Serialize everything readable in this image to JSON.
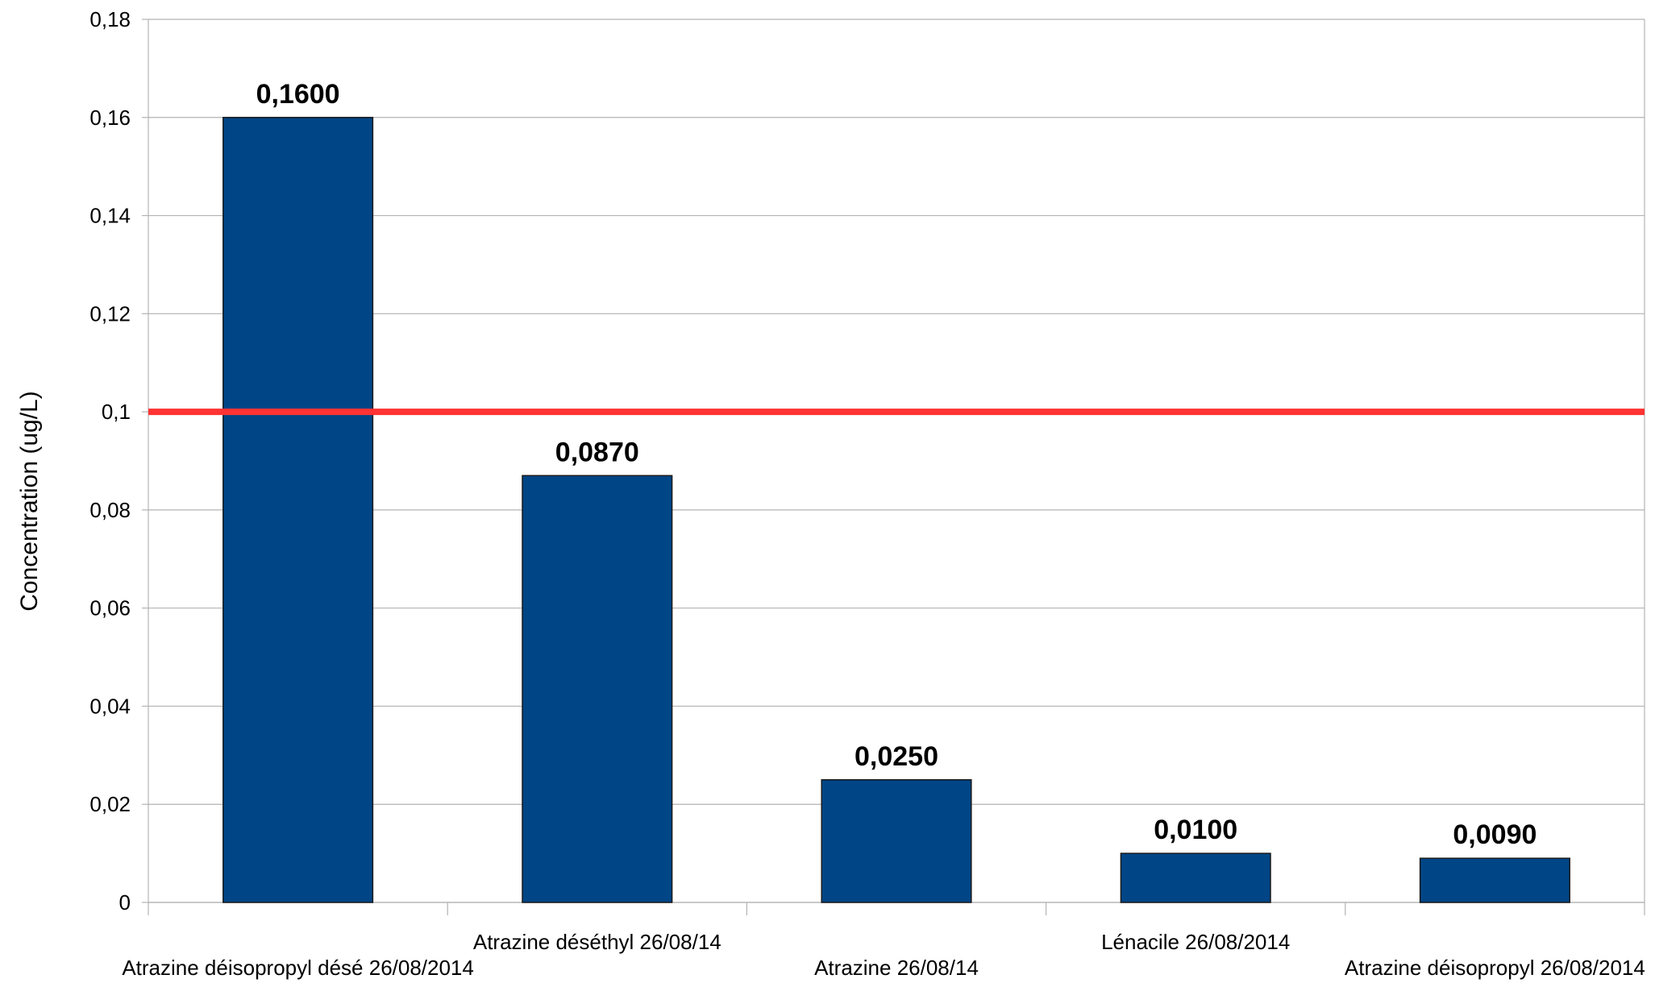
{
  "chart_data": {
    "type": "bar",
    "title": "",
    "xlabel": "",
    "ylabel": "Concentration (ug/L)",
    "ylim": [
      0,
      0.18
    ],
    "yticks": [
      0,
      0.02,
      0.04,
      0.06,
      0.08,
      0.1,
      0.12,
      0.14,
      0.16,
      0.18
    ],
    "ytick_labels": [
      "0",
      "0,02",
      "0,04",
      "0,06",
      "0,08",
      "0,1",
      "0,12",
      "0,14",
      "0,16",
      "0,18"
    ],
    "categories": [
      "Atrazine déisopropyl désé 26/08/2014",
      "Atrazine déséthyl 26/08/14",
      "Atrazine 26/08/14",
      "Lénacile 26/08/2014",
      "Atrazine déisopropyl 26/08/2014"
    ],
    "values": [
      0.16,
      0.087,
      0.025,
      0.01,
      0.009
    ],
    "data_labels": [
      "0,1600",
      "0,0870",
      "0,0250",
      "0,0100",
      "0,0090"
    ],
    "reference_line": {
      "value": 0.1
    },
    "grid": true,
    "legend": "none",
    "colors": {
      "bar": "#004586",
      "bar_edge": "#1a1a1a",
      "reference_line": "#ff3333",
      "grid": "#b3b3b3",
      "axis": "#b3b3b3"
    }
  }
}
